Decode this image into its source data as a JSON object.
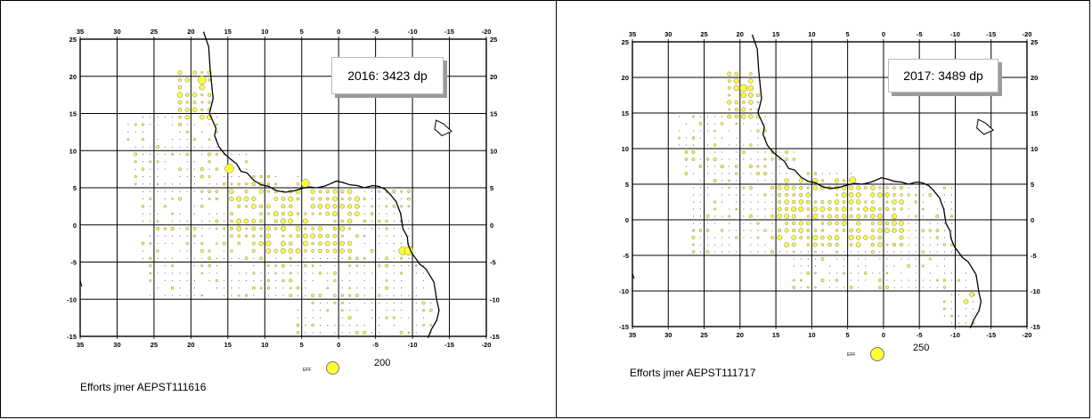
{
  "panels": [
    {
      "id": "2016",
      "label": "2016: 3423 dp",
      "caption": "Efforts jmer AEPST111616",
      "legend": {
        "key": "EFF",
        "value": "200"
      },
      "x_ticks": [
        "35",
        "30",
        "25",
        "20",
        "15",
        "10",
        "5",
        "0",
        "-5",
        "-10",
        "-15",
        "-20"
      ],
      "y_ticks": [
        "25",
        "20",
        "15",
        "10",
        "5",
        "0",
        "-5",
        "-10",
        "-15"
      ]
    },
    {
      "id": "2017",
      "label": "2017: 3489 dp",
      "caption": "Efforts jmer AEPST111717",
      "legend": {
        "key": "EFF",
        "value": "250"
      },
      "x_ticks": [
        "35",
        "30",
        "25",
        "20",
        "15",
        "10",
        "5",
        "0",
        "-5",
        "-10",
        "-15",
        "-20"
      ],
      "y_ticks": [
        "25",
        "20",
        "15",
        "10",
        "5",
        "0",
        "-5",
        "-10",
        "-15"
      ]
    }
  ],
  "colors": {
    "marker_fill": "#ffff33",
    "marker_stroke": "#777777",
    "grid": "#000000",
    "coast": "#000000"
  }
}
